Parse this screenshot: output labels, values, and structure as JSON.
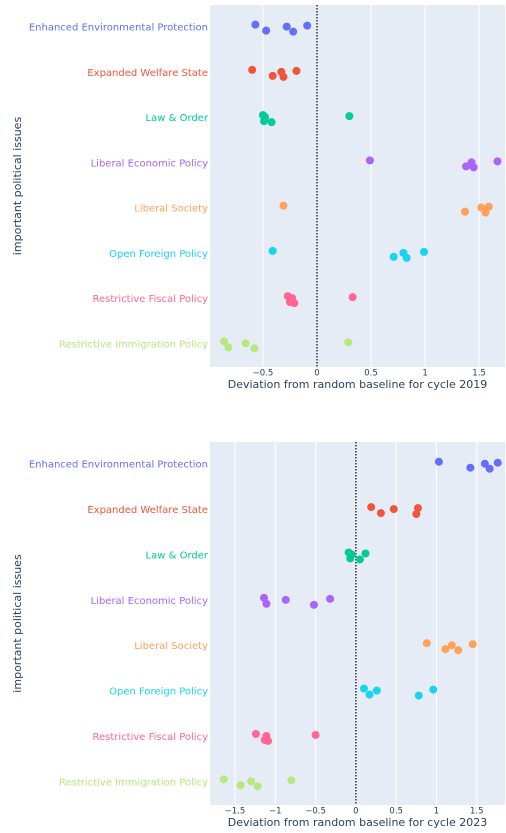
{
  "chart_data": [
    {
      "type": "strip",
      "xlabel": "Deviation from random baseline for cycle 2019",
      "ylabel": "important political issues",
      "categories": [
        "Enhanced Environmental Protection",
        "Expanded Welfare State",
        "Law & Order",
        "Liberal Economic Policy",
        "Liberal Society",
        "Open Foreign Policy",
        "Restrictive Fiscal Policy",
        "Restrictive Immigration Policy"
      ],
      "colors": [
        "#636efa",
        "#EF553B",
        "#00cc96",
        "#ab63fa",
        "#FFA15A",
        "#19d3f3",
        "#FF6692",
        "#B6E880"
      ],
      "values": [
        [
          -0.57,
          -0.47,
          -0.28,
          -0.22,
          -0.09
        ],
        [
          -0.6,
          -0.41,
          -0.33,
          -0.31,
          -0.19
        ],
        [
          -0.5,
          -0.49,
          -0.48,
          -0.42,
          0.3
        ],
        [
          0.49,
          1.38,
          1.43,
          1.45,
          1.67
        ],
        [
          -0.31,
          1.37,
          1.52,
          1.56,
          1.59
        ],
        [
          -0.41,
          0.71,
          0.8,
          0.83,
          0.99
        ],
        [
          -0.27,
          -0.25,
          -0.23,
          -0.21,
          0.33
        ],
        [
          -0.86,
          -0.82,
          -0.66,
          -0.58,
          0.29
        ]
      ],
      "xlim": [
        -0.99,
        1.74
      ],
      "xticks": [
        {
          "value": -0.5,
          "label": "−0.5"
        },
        0,
        0.5,
        1,
        1.5
      ],
      "grid": true,
      "zeroline": true
    },
    {
      "type": "strip",
      "xlabel": "Deviation from random baseline for cycle 2023",
      "ylabel": "important political issues",
      "categories": [
        "Enhanced Environmental Protection",
        "Expanded Welfare State",
        "Law & Order",
        "Liberal Economic Policy",
        "Liberal Society",
        "Open Foreign Policy",
        "Restrictive Fiscal Policy",
        "Restrictive Immigration Policy"
      ],
      "colors": [
        "#636efa",
        "#EF553B",
        "#00cc96",
        "#ab63fa",
        "#FFA15A",
        "#19d3f3",
        "#FF6692",
        "#B6E880"
      ],
      "values": [
        [
          1.03,
          1.42,
          1.6,
          1.66,
          1.76
        ],
        [
          0.19,
          0.31,
          0.47,
          0.75,
          0.77
        ],
        [
          -0.09,
          -0.07,
          -0.05,
          0.05,
          0.12
        ],
        [
          -1.14,
          -1.11,
          -0.87,
          -0.52,
          -0.32
        ],
        [
          0.88,
          1.11,
          1.19,
          1.27,
          1.45
        ],
        [
          0.1,
          0.17,
          0.26,
          0.78,
          0.96
        ],
        [
          -1.24,
          -1.13,
          -1.11,
          -1.09,
          -0.5
        ],
        [
          -1.64,
          -1.43,
          -1.3,
          -1.22,
          -0.8
        ]
      ],
      "xlim": [
        -1.81,
        1.85
      ],
      "xticks": [
        {
          "value": -1.5,
          "label": "−1.5"
        },
        {
          "value": -1,
          "label": "−1"
        },
        {
          "value": -0.5,
          "label": "−0.5"
        },
        0,
        0.5,
        1,
        1.5
      ],
      "grid": true,
      "zeroline": true
    }
  ]
}
